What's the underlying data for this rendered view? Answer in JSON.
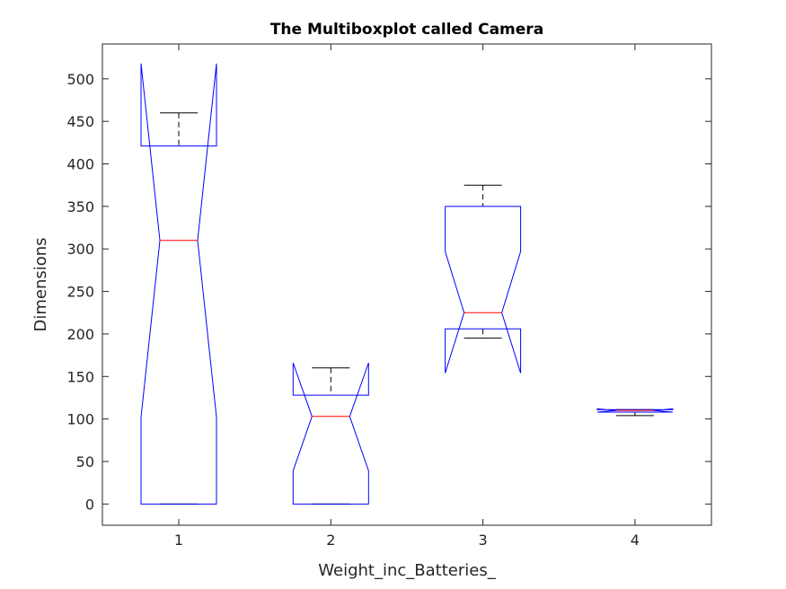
{
  "chart_data": {
    "type": "boxplot",
    "notched": true,
    "title": "The Multiboxplot called Camera",
    "xlabel": "Weight_inc_Batteries_",
    "ylabel": "Dimensions",
    "ylim": [
      -25,
      541
    ],
    "yticks": [
      0,
      50,
      100,
      150,
      200,
      250,
      300,
      350,
      400,
      450,
      500
    ],
    "xticks": [
      "1",
      "2",
      "3",
      "4"
    ],
    "colors": {
      "box": "#0000ff",
      "median": "#ff0000",
      "whisker": "#000000",
      "axis": "#262626"
    },
    "boxes": [
      {
        "label": "1",
        "q1": 0,
        "median": 310,
        "q3": 421,
        "whisker_low": 0,
        "whisker_high": 460,
        "notch_low": 102,
        "notch_high": 518
      },
      {
        "label": "2",
        "q1": 0,
        "median": 103,
        "q3": 128,
        "whisker_low": 0,
        "whisker_high": 160,
        "notch_low": 39,
        "notch_high": 166
      },
      {
        "label": "3",
        "q1": 206,
        "median": 225,
        "q3": 350,
        "whisker_low": 195,
        "whisker_high": 375,
        "notch_low": 154,
        "notch_high": 297
      },
      {
        "label": "4",
        "q1": 108,
        "median": 110,
        "q3": 111,
        "whisker_low": 104,
        "whisker_high": 111,
        "notch_low": 108,
        "notch_high": 112
      }
    ]
  }
}
